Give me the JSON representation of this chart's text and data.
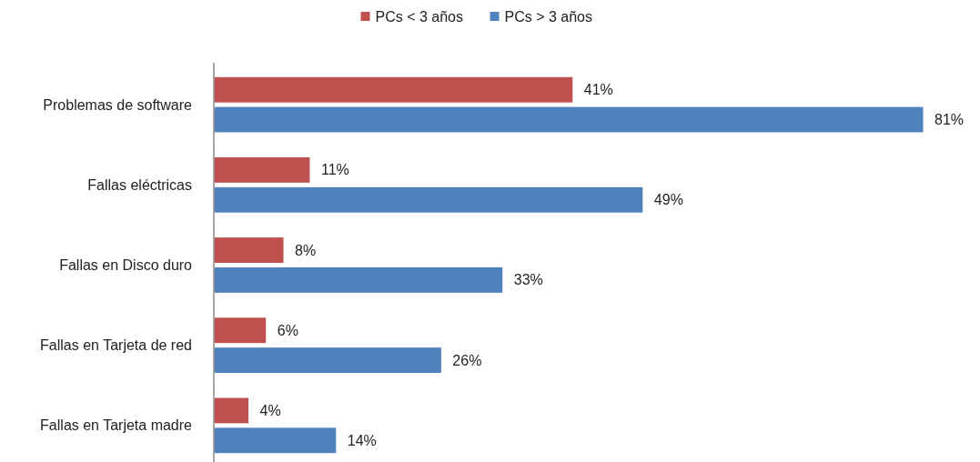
{
  "chart_data": {
    "type": "bar",
    "orientation": "horizontal",
    "categories": [
      "Problemas de software",
      "Fallas eléctricas",
      "Fallas en Disco duro",
      "Fallas en Tarjeta de red",
      "Fallas en Tarjeta madre"
    ],
    "series": [
      {
        "name": "PCs < 3 años",
        "color": "#c0504d",
        "values": [
          41,
          11,
          8,
          6,
          4
        ],
        "value_labels": [
          "41%",
          "11%",
          "8%",
          "6%",
          "4%"
        ]
      },
      {
        "name": "PCs > 3 años",
        "color": "#4f81bd",
        "values": [
          81,
          49,
          33,
          26,
          14
        ],
        "value_labels": [
          "81%",
          "49%",
          "33%",
          "26%",
          "14%"
        ]
      }
    ],
    "tick_labels": "y",
    "legend": "top"
  }
}
